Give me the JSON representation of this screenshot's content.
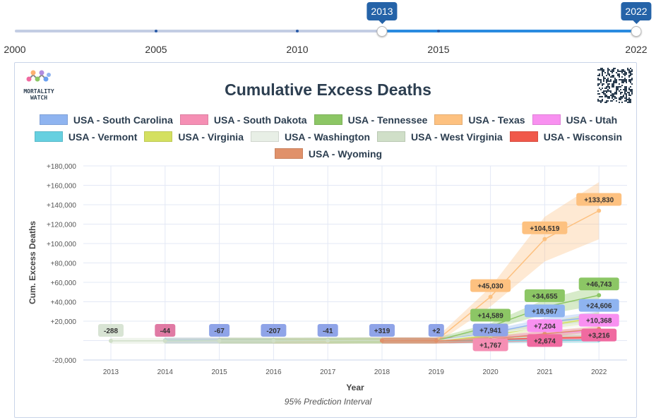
{
  "slider": {
    "ticks": [
      "2000",
      "2005",
      "2010",
      "2015",
      "2022"
    ],
    "start": "2013",
    "end": "2022",
    "min": 2000,
    "max": 2022,
    "accent": "#2a8be0"
  },
  "logo": {
    "line1": "MORTALITY",
    "line2": "WATCH"
  },
  "chart_data": {
    "type": "line",
    "title": "Cumulative Excess Deaths",
    "xlabel": "Year",
    "ylabel": "Cum. Excess Deaths",
    "subtitle": "95% Prediction Interval",
    "x": [
      "2013",
      "2014",
      "2015",
      "2016",
      "2017",
      "2018",
      "2019",
      "2020",
      "2021",
      "2022"
    ],
    "ylim": [
      -20000,
      180000
    ],
    "yticks": [
      "-20,000",
      "",
      "+20,000",
      "+40,000",
      "+60,000",
      "+80,000",
      "+100,000",
      "+120,000",
      "+140,000",
      "+160,000",
      "+180,000"
    ],
    "ytick_values": [
      -20000,
      0,
      20000,
      40000,
      60000,
      80000,
      100000,
      120000,
      140000,
      160000,
      180000
    ],
    "legend_position": "top",
    "series": [
      {
        "name": "USA - South Carolina",
        "color": "#8fb4f0",
        "values": [
          null,
          null,
          -67,
          -207,
          -41,
          319,
          200,
          7941,
          18967,
          24606
        ]
      },
      {
        "name": "USA - South Dakota",
        "color": "#f58fb4",
        "values": [
          null,
          -44,
          -44,
          -60,
          -50,
          0,
          0,
          600,
          1500,
          2300
        ]
      },
      {
        "name": "USA - Tennessee",
        "color": "#8cc665",
        "values": [
          null,
          null,
          null,
          null,
          -41,
          0,
          0,
          14589,
          34655,
          46743
        ]
      },
      {
        "name": "USA - Texas",
        "color": "#fdc180",
        "values": [
          null,
          null,
          null,
          -207,
          -300,
          319,
          0,
          45030,
          104519,
          133830
        ]
      },
      {
        "name": "USA - Utah",
        "color": "#f890f0",
        "values": [
          null,
          null,
          null,
          null,
          null,
          0,
          0,
          1500,
          7204,
          10368
        ]
      },
      {
        "name": "USA - Vermont",
        "color": "#66d0e0",
        "values": [
          null,
          -44,
          -30,
          -20,
          -10,
          0,
          0,
          200,
          400,
          600
        ]
      },
      {
        "name": "USA - Virginia",
        "color": "#d4e060",
        "values": [
          null,
          null,
          -67,
          -50,
          -30,
          0,
          0,
          5000,
          15000,
          24000
        ]
      },
      {
        "name": "USA - Washington",
        "color": "#e8efe6",
        "values": [
          null,
          null,
          null,
          null,
          null,
          null,
          2,
          7000,
          14000,
          20000
        ]
      },
      {
        "name": "USA - West Virginia",
        "color": "#d0dfc8",
        "values": [
          -288,
          -288,
          -200,
          -150,
          -100,
          0,
          0,
          1767,
          4000,
          6000
        ]
      },
      {
        "name": "USA - Wisconsin",
        "color": "#f0584a",
        "values": [
          null,
          null,
          null,
          null,
          null,
          0,
          0,
          1000,
          2674,
          3216
        ]
      },
      {
        "name": "USA - Wyoming",
        "color": "#e0916a",
        "values": [
          null,
          null,
          null,
          null,
          null,
          0,
          0,
          1200,
          7000,
          12000
        ]
      }
    ],
    "labels": [
      {
        "x": "2013",
        "text": "-288",
        "color": "#d8e4d4"
      },
      {
        "x": "2014",
        "text": "-44",
        "color": "#e07aa4"
      },
      {
        "x": "2015",
        "text": "-67",
        "color": "#8fa4e8"
      },
      {
        "x": "2016",
        "text": "-207",
        "color": "#8fa4e8"
      },
      {
        "x": "2017",
        "text": "-41",
        "color": "#8fa4e8"
      },
      {
        "x": "2018",
        "text": "+319",
        "color": "#8fa4e8"
      },
      {
        "x": "2019",
        "text": "+2",
        "color": "#8fa4e8"
      },
      {
        "x": "2020",
        "text": "+45,030",
        "color": "#fdc180",
        "v": 45030
      },
      {
        "x": "2021",
        "text": "+104,519",
        "color": "#fdc180",
        "v": 104519
      },
      {
        "x": "2022",
        "text": "+133,830",
        "color": "#fdc180",
        "v": 133830
      },
      {
        "x": "2020",
        "text": "+14,589",
        "color": "#8cc665",
        "v": 14589
      },
      {
        "x": "2021",
        "text": "+34,655",
        "color": "#8cc665",
        "v": 34655
      },
      {
        "x": "2022",
        "text": "+46,743",
        "color": "#8cc665",
        "v": 46743
      },
      {
        "x": "2020",
        "text": "+1,767",
        "color": "#f58fb4",
        "v": 3000
      },
      {
        "x": "2020",
        "text": "+7,941",
        "color": "#8fa4e8",
        "v": 9500
      },
      {
        "x": "2021",
        "text": "+7,204",
        "color": "#f890f0",
        "v": 11500
      },
      {
        "x": "2021",
        "text": "+18,967",
        "color": "#8fb4f0",
        "v": 18967
      },
      {
        "x": "2021",
        "text": "+2,674",
        "color": "#f06aa0",
        "v": 6500
      },
      {
        "x": "2022",
        "text": "+24,606",
        "color": "#8fb4f0",
        "v": 24606
      },
      {
        "x": "2022",
        "text": "+10,368",
        "color": "#f890f0",
        "v": 13500
      },
      {
        "x": "2022",
        "text": "+3,216",
        "color": "#f06aa0",
        "v": 7000
      }
    ]
  }
}
